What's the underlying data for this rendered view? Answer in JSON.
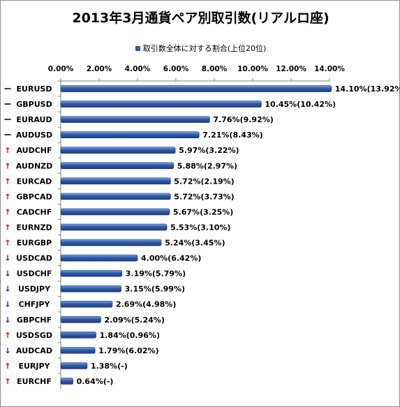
{
  "chart_data": {
    "type": "bar",
    "orientation": "horizontal",
    "title": "2013年3月通貨ペア別取引数(リアルロ座)",
    "legend": {
      "label": "取引数全体に対する割合(上位20位)",
      "position": "top"
    },
    "x_ticks": [
      "0.00%",
      "2.00%",
      "4.00%",
      "6.00%",
      "8.00%",
      "10.00%",
      "12.00%",
      "14.00%"
    ],
    "xlim": [
      0,
      14
    ],
    "grid": false,
    "bar_color": "#2f59a8",
    "trend_colors": {
      "up": "#e0001b",
      "down": "#1c1cb8",
      "flat": "#000000"
    },
    "categories": [
      "EURUSD",
      "GBPUSD",
      "EURAUD",
      "AUDUSD",
      "AUDCHF",
      "AUDNZD",
      "EURCAD",
      "GBPCAD",
      "CADCHF",
      "EURNZD",
      "EURGBP",
      "USDCAD",
      "USDCHF",
      "USDJPY",
      "CHFJPY",
      "GBPCHF",
      "USDSGD",
      "AUDCAD",
      "EURJPY",
      "EURCHF"
    ],
    "values": [
      14.1,
      10.45,
      7.76,
      7.21,
      5.97,
      5.88,
      5.72,
      5.72,
      5.67,
      5.53,
      5.24,
      4.0,
      3.19,
      3.15,
      2.69,
      2.09,
      1.84,
      1.79,
      1.38,
      0.64
    ],
    "trend_symbols": [
      "ー",
      "ー",
      "ー",
      "ー",
      "↑",
      "↑",
      "↑",
      "↑",
      "↑",
      "↑",
      "↑",
      "↓",
      "↓",
      "↓",
      "↓",
      "↓",
      "↑",
      "↓",
      "↑",
      "↑"
    ],
    "trend": [
      "flat",
      "flat",
      "flat",
      "flat",
      "up",
      "up",
      "up",
      "up",
      "up",
      "up",
      "up",
      "down",
      "down",
      "down",
      "down",
      "down",
      "up",
      "down",
      "up",
      "up"
    ],
    "data_labels": [
      "14.10%(13.92%)",
      "10.45%(10.42%)",
      "7.76%(9.92%)",
      "7.21%(8.43%)",
      "5.97%(3.22%)",
      "5.88%(2.97%)",
      "5.72%(2.19%)",
      "5.72%(3.73%)",
      "5.67%(3.25%)",
      "5.53%(3.10%)",
      "5.24%(3.45%)",
      "4.00%(6.42%)",
      "3.19%(5.79%)",
      "3.15%(5.99%)",
      "2.69%(4.98%)",
      "2.09%(5.24%)",
      "1.84%(0.96%)",
      "1.79%(6.02%)",
      "1.38%(-)",
      "0.64%(-)"
    ]
  }
}
